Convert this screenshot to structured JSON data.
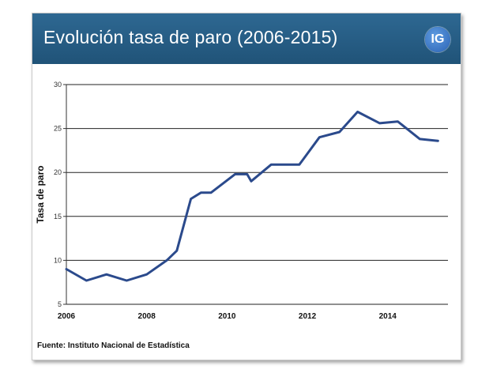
{
  "header": {
    "title": "Evolución tasa de paro (2006-2015)",
    "logo_text": "IG",
    "background": "#2a6590",
    "logo_color": "#3a78c9"
  },
  "footer": {
    "source": "Fuente: Instituto Nacional de Estadística"
  },
  "chart_data": {
    "type": "line",
    "title": "Evolución tasa de paro (2006-2015)",
    "xlabel": "",
    "ylabel": "Tasa de paro",
    "xlim": [
      2006,
      2015.5
    ],
    "ylim": [
      5,
      30
    ],
    "yticks": [
      "5",
      "10",
      "15",
      "20",
      "25",
      "30"
    ],
    "xticks": [
      "2006",
      "2008",
      "2010",
      "2012",
      "2014"
    ],
    "grid": "horizontal",
    "line_color": "#2b4a8c",
    "series": [
      {
        "x": [
          2006.0,
          2006.5,
          2007.0,
          2007.5,
          2008.0,
          2008.5,
          2008.75,
          2009.1,
          2009.35,
          2009.6,
          2010.2,
          2010.5,
          2010.6,
          2011.1,
          2011.8,
          2012.3,
          2012.8,
          2013.25,
          2013.8,
          2014.25,
          2014.8,
          2015.25
        ],
        "values": [
          9.0,
          7.7,
          8.4,
          7.7,
          8.4,
          10.0,
          11.1,
          17.0,
          17.7,
          17.7,
          19.8,
          19.8,
          19.0,
          20.9,
          20.9,
          24.0,
          24.6,
          26.9,
          25.6,
          25.8,
          23.8,
          23.6
        ]
      }
    ]
  }
}
